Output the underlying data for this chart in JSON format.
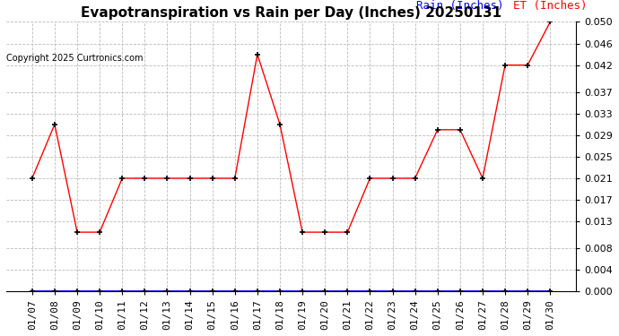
{
  "title": "Evapotranspiration vs Rain per Day (Inches) 20250131",
  "copyright": "Copyright 2025 Curtronics.com",
  "legend_rain": "Rain (Inches)",
  "legend_et": "ET (Inches)",
  "x_labels": [
    "01/07",
    "01/08",
    "01/09",
    "01/10",
    "01/11",
    "01/12",
    "01/13",
    "01/14",
    "01/15",
    "01/16",
    "01/17",
    "01/18",
    "01/19",
    "01/20",
    "01/21",
    "01/22",
    "01/23",
    "01/24",
    "01/25",
    "01/26",
    "01/27",
    "01/28",
    "01/29",
    "01/30"
  ],
  "et_values": [
    0.021,
    0.031,
    0.011,
    0.011,
    0.021,
    0.021,
    0.021,
    0.021,
    0.021,
    0.021,
    0.044,
    0.031,
    0.011,
    0.011,
    0.011,
    0.021,
    0.021,
    0.021,
    0.03,
    0.03,
    0.021,
    0.042,
    0.042,
    0.05
  ],
  "rain_values": [
    0.0,
    0.0,
    0.0,
    0.0,
    0.0,
    0.0,
    0.0,
    0.0,
    0.0,
    0.0,
    0.0,
    0.0,
    0.0,
    0.0,
    0.0,
    0.0,
    0.0,
    0.0,
    0.0,
    0.0,
    0.0,
    0.0,
    0.0,
    0.0
  ],
  "et_color": "red",
  "rain_color": "blue",
  "ylim": [
    0.0,
    0.05
  ],
  "yticks": [
    0.0,
    0.004,
    0.008,
    0.013,
    0.017,
    0.021,
    0.025,
    0.029,
    0.033,
    0.037,
    0.042,
    0.046,
    0.05
  ],
  "background_color": "#ffffff",
  "title_fontsize": 11,
  "copyright_fontsize": 7,
  "legend_fontsize": 9,
  "tick_fontsize": 8,
  "grid_color": "#bbbbbb",
  "marker_size": 5,
  "marker_color": "black"
}
